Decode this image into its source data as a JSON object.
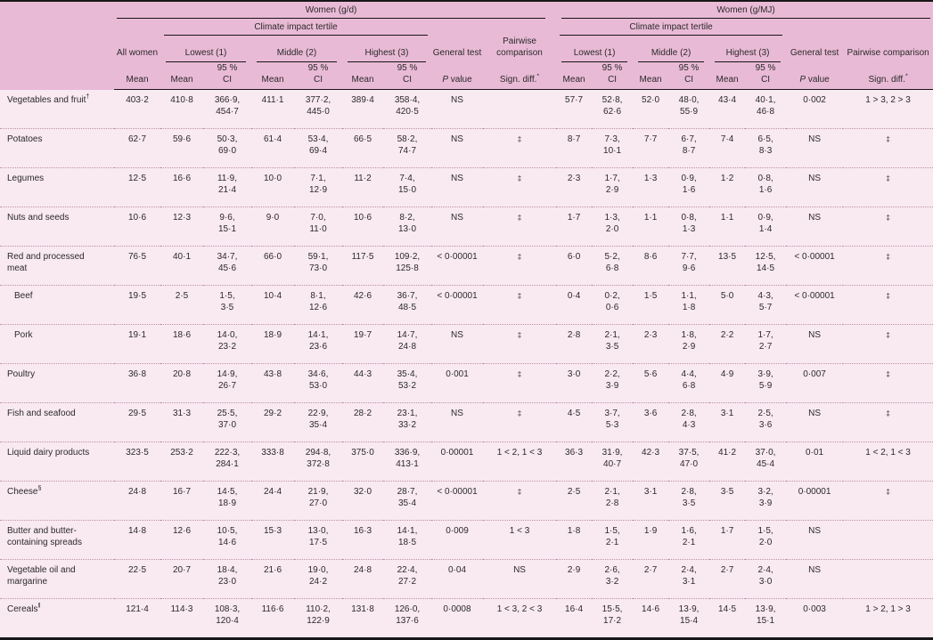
{
  "header": {
    "women_gd": "Women (g/d)",
    "women_gmj": "Women (g/MJ)",
    "climate_tertile": "Climate impact tertile",
    "all_women": "All women",
    "lowest": "Lowest (1)",
    "middle": "Middle (2)",
    "highest": "Highest (3)",
    "general_test": "General test",
    "pairwise": "Pairwise comparison",
    "mean": "Mean",
    "ci_line1": "95 %",
    "ci_line2": "CI",
    "p_italic": "P",
    "p_rest": " value",
    "sign_diff": "Sign. diff.",
    "sign_diff_sup": "*"
  },
  "colors": {
    "header_bg": "#e9bad6",
    "body_bg": "#f9e9f1",
    "border": "#161616",
    "row_divider": "#bb93a9"
  },
  "rows": [
    {
      "label": "Vegetables and fruit",
      "sup": "†",
      "indent": false,
      "gd": {
        "all": "403·2",
        "t": [
          [
            "410·8",
            "366·9",
            "454·7"
          ],
          [
            "411·1",
            "377·2",
            "445·0"
          ],
          [
            "389·4",
            "358·4",
            "420·5"
          ]
        ],
        "p": "NS",
        "s": ""
      },
      "mj": {
        "t": [
          [
            "57·7",
            "52·8",
            "62·6"
          ],
          [
            "52·0",
            "48·0",
            "55·9"
          ],
          [
            "43·4",
            "40·1",
            "46·8"
          ]
        ],
        "p": "0·002",
        "s": "1 > 3, 2 > 3"
      }
    },
    {
      "label": "Potatoes",
      "sup": "",
      "indent": false,
      "gd": {
        "all": "62·7",
        "t": [
          [
            "59·6",
            "50·3",
            "69·0"
          ],
          [
            "61·4",
            "53·4",
            "69·4"
          ],
          [
            "66·5",
            "58·2",
            "74·7"
          ]
        ],
        "p": "NS",
        "s": "‡"
      },
      "mj": {
        "t": [
          [
            "8·7",
            "7·3",
            "10·1"
          ],
          [
            "7·7",
            "6·7",
            "8·7"
          ],
          [
            "7·4",
            "6·5",
            "8·3"
          ]
        ],
        "p": "NS",
        "s": "‡"
      }
    },
    {
      "label": "Legumes",
      "sup": "",
      "indent": false,
      "gd": {
        "all": "12·5",
        "t": [
          [
            "16·6",
            "11·9",
            "21·4"
          ],
          [
            "10·0",
            "7·1",
            "12·9"
          ],
          [
            "11·2",
            "7·4",
            "15·0"
          ]
        ],
        "p": "NS",
        "s": "‡"
      },
      "mj": {
        "t": [
          [
            "2·3",
            "1·7",
            "2·9"
          ],
          [
            "1·3",
            "0·9",
            "1·6"
          ],
          [
            "1·2",
            "0·8",
            "1·6"
          ]
        ],
        "p": "NS",
        "s": "‡"
      }
    },
    {
      "label": "Nuts and seeds",
      "sup": "",
      "indent": false,
      "gd": {
        "all": "10·6",
        "t": [
          [
            "12·3",
            "9·6",
            "15·1"
          ],
          [
            "9·0",
            "7·0",
            "11·0"
          ],
          [
            "10·6",
            "8·2",
            "13·0"
          ]
        ],
        "p": "NS",
        "s": "‡"
      },
      "mj": {
        "t": [
          [
            "1·7",
            "1·3",
            "2·0"
          ],
          [
            "1·1",
            "0·8",
            "1·3"
          ],
          [
            "1·1",
            "0·9",
            "1·4"
          ]
        ],
        "p": "NS",
        "s": "‡"
      }
    },
    {
      "label": "Red and processed meat",
      "sup": "",
      "indent": false,
      "gd": {
        "all": "76·5",
        "t": [
          [
            "40·1",
            "34·7",
            "45·6"
          ],
          [
            "66·0",
            "59·1",
            "73·0"
          ],
          [
            "117·5",
            "109·2",
            "125·8"
          ]
        ],
        "p": "< 0·00001",
        "s": "‡"
      },
      "mj": {
        "t": [
          [
            "6·0",
            "5·2",
            "6·8"
          ],
          [
            "8·6",
            "7·7",
            "9·6"
          ],
          [
            "13·5",
            "12·5",
            "14·5"
          ]
        ],
        "p": "< 0·00001",
        "s": "‡"
      }
    },
    {
      "label": "Beef",
      "sup": "",
      "indent": true,
      "gd": {
        "all": "19·5",
        "t": [
          [
            "2·5",
            "1·5",
            "3·5"
          ],
          [
            "10·4",
            "8·1",
            "12·6"
          ],
          [
            "42·6",
            "36·7",
            "48·5"
          ]
        ],
        "p": "< 0·00001",
        "s": "‡"
      },
      "mj": {
        "t": [
          [
            "0·4",
            "0·2",
            "0·6"
          ],
          [
            "1·5",
            "1·1",
            "1·8"
          ],
          [
            "5·0",
            "4·3",
            "5·7"
          ]
        ],
        "p": "< 0·00001",
        "s": "‡"
      }
    },
    {
      "label": "Pork",
      "sup": "",
      "indent": true,
      "gd": {
        "all": "19·1",
        "t": [
          [
            "18·6",
            "14·0",
            "23·2"
          ],
          [
            "18·9",
            "14·1",
            "23·6"
          ],
          [
            "19·7",
            "14·7",
            "24·8"
          ]
        ],
        "p": "NS",
        "s": "‡"
      },
      "mj": {
        "t": [
          [
            "2·8",
            "2·1",
            "3·5"
          ],
          [
            "2·3",
            "1·8",
            "2·9"
          ],
          [
            "2·2",
            "1·7",
            "2·7"
          ]
        ],
        "p": "NS",
        "s": "‡"
      }
    },
    {
      "label": "Poultry",
      "sup": "",
      "indent": false,
      "gd": {
        "all": "36·8",
        "t": [
          [
            "20·8",
            "14·9",
            "26·7"
          ],
          [
            "43·8",
            "34·6",
            "53·0"
          ],
          [
            "44·3",
            "35·4",
            "53·2"
          ]
        ],
        "p": "0·001",
        "s": "‡"
      },
      "mj": {
        "t": [
          [
            "3·0",
            "2·2",
            "3·9"
          ],
          [
            "5·6",
            "4·4",
            "6·8"
          ],
          [
            "4·9",
            "3·9",
            "5·9"
          ]
        ],
        "p": "0·007",
        "s": "‡"
      }
    },
    {
      "label": "Fish and seafood",
      "sup": "",
      "indent": false,
      "gd": {
        "all": "29·5",
        "t": [
          [
            "31·3",
            "25·5",
            "37·0"
          ],
          [
            "29·2",
            "22·9",
            "35·4"
          ],
          [
            "28·2",
            "23·1",
            "33·2"
          ]
        ],
        "p": "NS",
        "s": "‡"
      },
      "mj": {
        "t": [
          [
            "4·5",
            "3·7",
            "5·3"
          ],
          [
            "3·6",
            "2·8",
            "4·3"
          ],
          [
            "3·1",
            "2·5",
            "3·6"
          ]
        ],
        "p": "NS",
        "s": "‡"
      }
    },
    {
      "label": "Liquid dairy products",
      "sup": "",
      "indent": false,
      "gd": {
        "all": "323·5",
        "t": [
          [
            "253·2",
            "222·3",
            "284·1"
          ],
          [
            "333·8",
            "294·8",
            "372·8"
          ],
          [
            "375·0",
            "336·9",
            "413·1"
          ]
        ],
        "p": "0·00001",
        "s": "1 < 2, 1 < 3"
      },
      "mj": {
        "t": [
          [
            "36·3",
            "31·9",
            "40·7"
          ],
          [
            "42·3",
            "37·5",
            "47·0"
          ],
          [
            "41·2",
            "37·0",
            "45·4"
          ]
        ],
        "p": "0·01",
        "s": "1 < 2, 1 < 3"
      }
    },
    {
      "label": "Cheese",
      "sup": "§",
      "indent": false,
      "gd": {
        "all": "24·8",
        "t": [
          [
            "16·7",
            "14·5",
            "18·9"
          ],
          [
            "24·4",
            "21·9",
            "27·0"
          ],
          [
            "32·0",
            "28·7",
            "35·4"
          ]
        ],
        "p": "< 0·00001",
        "s": "‡"
      },
      "mj": {
        "t": [
          [
            "2·5",
            "2·1",
            "2·8"
          ],
          [
            "3·1",
            "2·8",
            "3·5"
          ],
          [
            "3·5",
            "3·2",
            "3·9"
          ]
        ],
        "p": "0·00001",
        "s": "‡"
      }
    },
    {
      "label": "Butter and butter-containing spreads",
      "sup": "",
      "indent": false,
      "gd": {
        "all": "14·8",
        "t": [
          [
            "12·6",
            "10·5",
            "14·6"
          ],
          [
            "15·3",
            "13·0",
            "17·5"
          ],
          [
            "16·3",
            "14·1",
            "18·5"
          ]
        ],
        "p": "0·009",
        "s": "1 < 3"
      },
      "mj": {
        "t": [
          [
            "1·8",
            "1·5",
            "2·1"
          ],
          [
            "1·9",
            "1·6",
            "2·1"
          ],
          [
            "1·7",
            "1·5",
            "2·0"
          ]
        ],
        "p": "NS",
        "s": ""
      }
    },
    {
      "label": "Vegetable oil and margarine",
      "sup": "",
      "indent": false,
      "gd": {
        "all": "22·5",
        "t": [
          [
            "20·7",
            "18·4",
            "23·0"
          ],
          [
            "21·6",
            "19·0",
            "24·2"
          ],
          [
            "24·8",
            "22·4",
            "27·2"
          ]
        ],
        "p": "0·04",
        "s": "NS"
      },
      "mj": {
        "t": [
          [
            "2·9",
            "2·6",
            "3·2"
          ],
          [
            "2·7",
            "2·4",
            "3·1"
          ],
          [
            "2·7",
            "2·4",
            "3·0"
          ]
        ],
        "p": "NS",
        "s": ""
      }
    },
    {
      "label": "Cereals",
      "sup": "‖",
      "indent": false,
      "gd": {
        "all": "121·4",
        "t": [
          [
            "114·3",
            "108·3",
            "120·4"
          ],
          [
            "116·6",
            "110·2",
            "122·9"
          ],
          [
            "131·8",
            "126·0",
            "137·6"
          ]
        ],
        "p": "0·0008",
        "s": "1 < 3, 2 < 3"
      },
      "mj": {
        "t": [
          [
            "16·4",
            "15·5",
            "17·2"
          ],
          [
            "14·6",
            "13·9",
            "15·4"
          ],
          [
            "14·5",
            "13·9",
            "15·1"
          ]
        ],
        "p": "0·003",
        "s": "1 > 2, 1 > 3"
      }
    }
  ]
}
